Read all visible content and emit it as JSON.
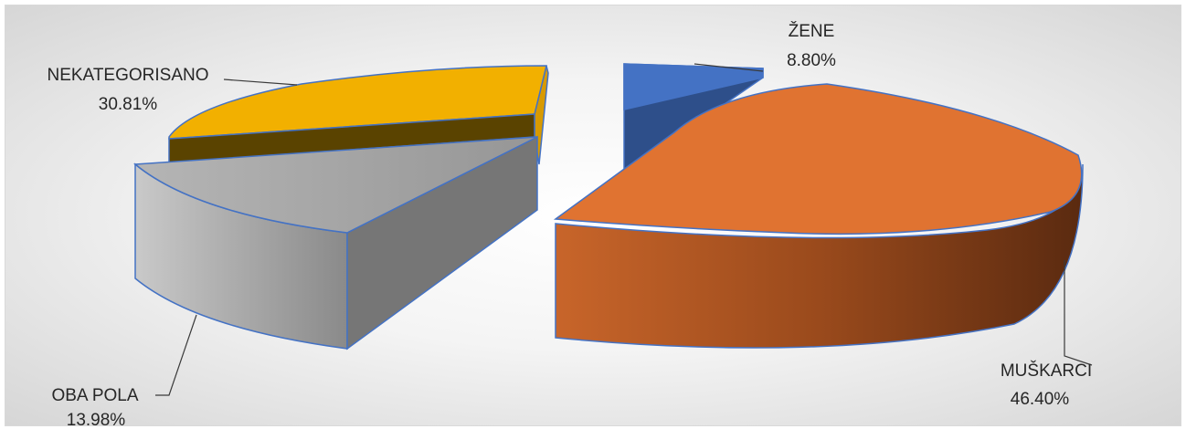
{
  "chart_data": {
    "type": "pie",
    "style": "3d-exploded",
    "slices": [
      {
        "label": "ŽENE",
        "value": 8.8,
        "display": "8.80%",
        "color": "#4472C4"
      },
      {
        "label": "MUŠKARCI",
        "value": 46.4,
        "display": "46.40%",
        "color": "#ED7D31"
      },
      {
        "label": "OBA POLA",
        "value": 13.98,
        "display": "13.98%",
        "color": "#A5A5A5"
      },
      {
        "label": "NEKATEGORISANO",
        "value": 30.81,
        "display": "30.81%",
        "color": "#FFC000"
      }
    ]
  }
}
